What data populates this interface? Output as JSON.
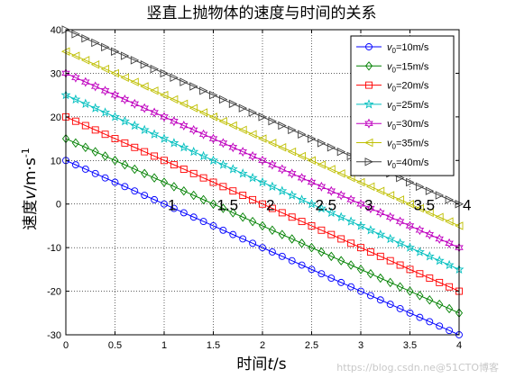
{
  "chart_data": {
    "type": "line",
    "title": "竖直上抛物体的速度与时间的关系",
    "xlabel_prefix": "时间",
    "xlabel_var": "t",
    "xlabel_suffix": "/s",
    "ylabel_prefix": "速度",
    "ylabel_var": "v",
    "ylabel_unit": "/m·s",
    "ylabel_exp": "-1",
    "xlim": [
      0,
      4
    ],
    "ylim": [
      -30,
      40
    ],
    "xticks": [
      "0",
      "0.5",
      "1",
      "1.5",
      "2",
      "2.5",
      "3",
      "3.5",
      "4"
    ],
    "yticks": [
      "40",
      "30",
      "20",
      "10",
      "0",
      "-10",
      "-20",
      "-30"
    ],
    "grid": true,
    "legend_position": "top-right",
    "x": [
      0,
      0.1,
      0.2,
      0.3,
      0.4,
      0.5,
      0.6,
      0.7,
      0.8,
      0.9,
      1.0,
      1.1,
      1.2,
      1.3,
      1.4,
      1.5,
      1.6,
      1.7,
      1.8,
      1.9,
      2.0,
      2.1,
      2.2,
      2.3,
      2.4,
      2.5,
      2.6,
      2.7,
      2.8,
      2.9,
      3.0,
      3.1,
      3.2,
      3.3,
      3.4,
      3.5,
      3.6,
      3.7,
      3.8,
      3.9,
      4.0
    ],
    "series": [
      {
        "name": "v0=10m/s",
        "legend_main": "v",
        "legend_sub": "0",
        "legend_rest": "=10m/s",
        "v0": 10,
        "slope": -10,
        "values": [
          10,
          9,
          8,
          7,
          6,
          5,
          4,
          3,
          2,
          1,
          0,
          -1,
          -2,
          -3,
          -4,
          -5,
          -6,
          -7,
          -8,
          -9,
          -10,
          -11,
          -12,
          -13,
          -14,
          -15,
          -16,
          -17,
          -18,
          -19,
          -20,
          -21,
          -22,
          -23,
          -24,
          -25,
          -26,
          -27,
          -28,
          -29,
          -30
        ],
        "color": "#0000ff",
        "marker": "circle"
      },
      {
        "name": "v0=15m/s",
        "legend_main": "v",
        "legend_sub": "0",
        "legend_rest": "=15m/s",
        "v0": 15,
        "slope": -10,
        "values": [
          15,
          14,
          13,
          12,
          11,
          10,
          9,
          8,
          7,
          6,
          5,
          4,
          3,
          2,
          1,
          0,
          -1,
          -2,
          -3,
          -4,
          -5,
          -6,
          -7,
          -8,
          -9,
          -10,
          -11,
          -12,
          -13,
          -14,
          -15,
          -16,
          -17,
          -18,
          -19,
          -20,
          -21,
          -22,
          -23,
          -24,
          -25
        ],
        "color": "#008000",
        "marker": "diamond"
      },
      {
        "name": "v0=20m/s",
        "legend_main": "v",
        "legend_sub": "0",
        "legend_rest": "=20m/s",
        "v0": 20,
        "slope": -10,
        "values": [
          20,
          19,
          18,
          17,
          16,
          15,
          14,
          13,
          12,
          11,
          10,
          9,
          8,
          7,
          6,
          5,
          4,
          3,
          2,
          1,
          0,
          -1,
          -2,
          -3,
          -4,
          -5,
          -6,
          -7,
          -8,
          -9,
          -10,
          -11,
          -12,
          -13,
          -14,
          -15,
          -16,
          -17,
          -18,
          -19,
          -20
        ],
        "color": "#ff0000",
        "marker": "square"
      },
      {
        "name": "v0=25m/s",
        "legend_main": "v",
        "legend_sub": "0",
        "legend_rest": "=25m/s",
        "v0": 25,
        "slope": -10,
        "values": [
          25,
          24,
          23,
          22,
          21,
          20,
          19,
          18,
          17,
          16,
          15,
          14,
          13,
          12,
          11,
          10,
          9,
          8,
          7,
          6,
          5,
          4,
          3,
          2,
          1,
          0,
          -1,
          -2,
          -3,
          -4,
          -5,
          -6,
          -7,
          -8,
          -9,
          -10,
          -11,
          -12,
          -13,
          -14,
          -15
        ],
        "color": "#00bfbf",
        "marker": "star"
      },
      {
        "name": "v0=30m/s",
        "legend_main": "v",
        "legend_sub": "0",
        "legend_rest": "=30m/s",
        "v0": 30,
        "slope": -10,
        "values": [
          30,
          29,
          28,
          27,
          26,
          25,
          24,
          23,
          22,
          21,
          20,
          19,
          18,
          17,
          16,
          15,
          14,
          13,
          12,
          11,
          10,
          9,
          8,
          7,
          6,
          5,
          4,
          3,
          2,
          1,
          0,
          -1,
          -2,
          -3,
          -4,
          -5,
          -6,
          -7,
          -8,
          -9,
          -10
        ],
        "color": "#bf00bf",
        "marker": "hexagram"
      },
      {
        "name": "v0=35m/s",
        "legend_main": "v",
        "legend_sub": "0",
        "legend_rest": "=35m/s",
        "v0": 35,
        "slope": -10,
        "values": [
          35,
          34,
          33,
          32,
          31,
          30,
          29,
          28,
          27,
          26,
          25,
          24,
          23,
          22,
          21,
          20,
          19,
          18,
          17,
          16,
          15,
          14,
          13,
          12,
          11,
          10,
          9,
          8,
          7,
          6,
          5,
          4,
          3,
          2,
          1,
          0,
          -1,
          -2,
          -3,
          -4,
          -5
        ],
        "color": "#bfbf00",
        "marker": "triangle-left"
      },
      {
        "name": "v0=40m/s",
        "legend_main": "v",
        "legend_sub": "0",
        "legend_rest": "=40m/s",
        "v0": 40,
        "slope": -10,
        "values": [
          40,
          39,
          38,
          37,
          36,
          35,
          34,
          33,
          32,
          31,
          30,
          29,
          28,
          27,
          26,
          25,
          24,
          23,
          22,
          21,
          20,
          19,
          18,
          17,
          16,
          15,
          14,
          13,
          12,
          11,
          10,
          9,
          8,
          7,
          6,
          5,
          4,
          3,
          2,
          1,
          0
        ],
        "color": "#404040",
        "marker": "triangle-right"
      }
    ],
    "annotations": [
      {
        "text": "1",
        "x": 1,
        "y": 0
      },
      {
        "text": "1.5",
        "x": 1.5,
        "y": 0
      },
      {
        "text": "2",
        "x": 2,
        "y": 0
      },
      {
        "text": "2.5",
        "x": 2.5,
        "y": 0
      },
      {
        "text": "3",
        "x": 3,
        "y": 0
      },
      {
        "text": "3.5",
        "x": 3.5,
        "y": 0
      },
      {
        "text": "4",
        "x": 4,
        "y": 0
      }
    ]
  },
  "watermark": "https://blog.csdn.ne@51CTO博客"
}
